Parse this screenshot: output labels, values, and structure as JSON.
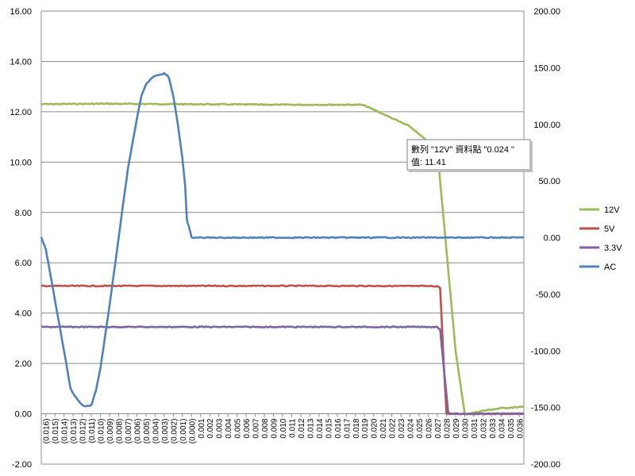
{
  "chart_data": {
    "type": "line",
    "title": "",
    "xlabel": "",
    "ylabel": "",
    "y2label": "",
    "grid": "horizontal",
    "legend_position": "right",
    "ylim": [
      -2,
      16
    ],
    "y_ticks": [
      "-2.00",
      "0.00",
      "2.00",
      "4.00",
      "6.00",
      "8.00",
      "10.00",
      "12.00",
      "14.00",
      "16.00"
    ],
    "y2lim": [
      -200,
      200
    ],
    "y2_ticks": [
      "-200.00",
      "-150.00",
      "-100.00",
      "-50.00",
      "0.00",
      "50.00",
      "100.00",
      "150.00",
      "200.00"
    ],
    "categories": [
      "(0.016)",
      "(0.015)",
      "(0.014)",
      "(0.013)",
      "(0.012)",
      "(0.011)",
      "(0.010)",
      "(0.009)",
      "(0.008)",
      "(0.007)",
      "(0.006)",
      "(0.005)",
      "(0.004)",
      "(0.003)",
      "(0.002)",
      "(0.001)",
      "(0.000)",
      "0.001",
      "0.002",
      "0.003",
      "0.004",
      "0.005",
      "0.006",
      "0.007",
      "0.008",
      "0.009",
      "0.010",
      "0.011",
      "0.012",
      "0.013",
      "0.014",
      "0.015",
      "0.016",
      "0.017",
      "0.018",
      "0.019",
      "0.020",
      "0.021",
      "0.022",
      "0.023",
      "0.024",
      "0.025",
      "0.026",
      "0.027",
      "0.028",
      "0.029",
      "0.030",
      "0.031",
      "0.032",
      "0.033",
      "0.034",
      "0.035",
      "0.036"
    ],
    "x_range": [
      -0.0165,
      0.0365
    ],
    "series": [
      {
        "name": "12V",
        "axis": "primary",
        "color": "#9bbb59",
        "x": [
          -0.0165,
          -0.01,
          0.0,
          0.01,
          0.0185,
          0.019,
          0.022,
          0.024,
          0.0255,
          0.0262,
          0.027,
          0.028,
          0.029,
          0.03,
          0.0305,
          0.032,
          0.034,
          0.0365
        ],
        "y": [
          12.3,
          12.32,
          12.3,
          12.28,
          12.28,
          12.25,
          11.75,
          11.41,
          10.95,
          10.8,
          10.45,
          6.5,
          2.5,
          0.0,
          0.0,
          0.12,
          0.22,
          0.28
        ]
      },
      {
        "name": "5V",
        "axis": "primary",
        "color": "#c0504d",
        "x": [
          -0.0165,
          0.0,
          0.02,
          0.027,
          0.0273,
          0.0277,
          0.028,
          0.0365
        ],
        "y": [
          5.08,
          5.08,
          5.08,
          5.07,
          5.0,
          2.0,
          0.0,
          0.0
        ]
      },
      {
        "name": "3.3V",
        "axis": "primary",
        "color": "#8064a2",
        "x": [
          -0.0165,
          0.0,
          0.02,
          0.027,
          0.0273,
          0.0278,
          0.0282,
          0.0365
        ],
        "y": [
          3.45,
          3.45,
          3.45,
          3.45,
          3.35,
          1.5,
          0.0,
          0.0
        ]
      },
      {
        "name": "AC",
        "axis": "secondary",
        "color": "#4f81bd",
        "x": [
          -0.0165,
          -0.016,
          -0.015,
          -0.014,
          -0.0133,
          -0.0128,
          -0.012,
          -0.0115,
          -0.011,
          -0.0105,
          -0.01,
          -0.009,
          -0.008,
          -0.007,
          -0.006,
          -0.0055,
          -0.005,
          -0.0045,
          -0.004,
          -0.0035,
          -0.003,
          -0.0025,
          -0.002,
          -0.0015,
          -0.001,
          -0.0007,
          -0.0005,
          -0.0003,
          0.0,
          0.01,
          0.02,
          0.03,
          0.0365
        ],
        "y": [
          0,
          -10,
          -55,
          -100,
          -133,
          -140,
          -148,
          -149,
          -148,
          -135,
          -115,
          -60,
          0,
          60,
          105,
          125,
          135,
          140,
          143,
          144,
          145,
          142,
          125,
          100,
          70,
          45,
          15,
          10,
          0,
          0,
          0,
          0,
          0
        ]
      }
    ],
    "tooltip": {
      "line1": "數列 \"12V\" 資料點 \"0.024 \"",
      "line2": "值: 11.41",
      "point_x": 0.024,
      "point_y": 11.41
    }
  }
}
